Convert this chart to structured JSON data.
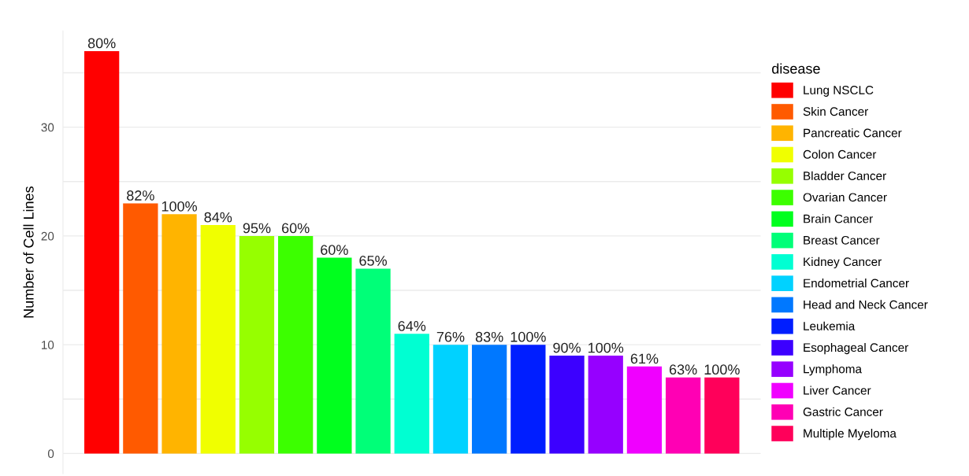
{
  "chart_data": {
    "type": "bar",
    "ylabel": "Number of Cell Lines",
    "legend_title": "disease",
    "categories": [
      null,
      null,
      null,
      null,
      null,
      null,
      null,
      null,
      null,
      null,
      null,
      null,
      null,
      null,
      null,
      null,
      null
    ],
    "series": [
      {
        "name": "Lung NSCLC",
        "color": "#ff0000",
        "values": [
          37,
          null,
          null,
          null,
          null,
          null,
          null,
          null,
          null,
          null,
          null,
          null,
          null,
          null,
          null,
          null,
          null
        ]
      },
      {
        "name": "Skin Cancer",
        "color": "#ff5a00",
        "values": [
          null,
          23,
          null,
          null,
          null,
          null,
          null,
          null,
          null,
          null,
          null,
          null,
          null,
          null,
          null,
          null,
          null
        ]
      },
      {
        "name": "Pancreatic Cancer",
        "color": "#ffb400",
        "values": [
          null,
          null,
          22,
          null,
          null,
          null,
          null,
          null,
          null,
          null,
          null,
          null,
          null,
          null,
          null,
          null,
          null
        ]
      },
      {
        "name": "Colon Cancer",
        "color": "#f0ff00",
        "values": [
          null,
          null,
          null,
          21,
          null,
          null,
          null,
          null,
          null,
          null,
          null,
          null,
          null,
          null,
          null,
          null,
          null
        ]
      },
      {
        "name": "Bladder Cancer",
        "color": "#96ff00",
        "values": [
          null,
          null,
          null,
          null,
          20,
          null,
          null,
          null,
          null,
          null,
          null,
          null,
          null,
          null,
          null,
          null,
          null
        ]
      },
      {
        "name": "Ovarian Cancer",
        "color": "#3cff00",
        "values": [
          null,
          null,
          null,
          null,
          null,
          20,
          null,
          null,
          null,
          null,
          null,
          null,
          null,
          null,
          null,
          null,
          null
        ]
      },
      {
        "name": "Brain Cancer",
        "color": "#00ff1e",
        "values": [
          null,
          null,
          null,
          null,
          null,
          null,
          18,
          null,
          null,
          null,
          null,
          null,
          null,
          null,
          null,
          null,
          null
        ]
      },
      {
        "name": "Breast Cancer",
        "color": "#00ff78",
        "values": [
          null,
          null,
          null,
          null,
          null,
          null,
          null,
          17,
          null,
          null,
          null,
          null,
          null,
          null,
          null,
          null,
          null
        ]
      },
      {
        "name": "Kidney Cancer",
        "color": "#00ffd2",
        "values": [
          null,
          null,
          null,
          null,
          null,
          null,
          null,
          null,
          11,
          null,
          null,
          null,
          null,
          null,
          null,
          null,
          null
        ]
      },
      {
        "name": "Endometrial Cancer",
        "color": "#00d2ff",
        "values": [
          null,
          null,
          null,
          null,
          null,
          null,
          null,
          null,
          null,
          10,
          null,
          null,
          null,
          null,
          null,
          null,
          null
        ]
      },
      {
        "name": "Head and Neck Cancer",
        "color": "#0078ff",
        "values": [
          null,
          null,
          null,
          null,
          null,
          null,
          null,
          null,
          null,
          null,
          10,
          null,
          null,
          null,
          null,
          null,
          null
        ]
      },
      {
        "name": "Leukemia",
        "color": "#001eff",
        "values": [
          null,
          null,
          null,
          null,
          null,
          null,
          null,
          null,
          null,
          null,
          null,
          10,
          null,
          null,
          null,
          null,
          null
        ]
      },
      {
        "name": "Esophageal Cancer",
        "color": "#3c00ff",
        "values": [
          null,
          null,
          null,
          null,
          null,
          null,
          null,
          null,
          null,
          null,
          null,
          null,
          9,
          null,
          null,
          null,
          null
        ]
      },
      {
        "name": "Lymphoma",
        "color": "#9600ff",
        "values": [
          null,
          null,
          null,
          null,
          null,
          null,
          null,
          null,
          null,
          null,
          null,
          null,
          null,
          9,
          null,
          null,
          null
        ]
      },
      {
        "name": "Liver Cancer",
        "color": "#f000ff",
        "values": [
          null,
          null,
          null,
          null,
          null,
          null,
          null,
          null,
          null,
          null,
          null,
          null,
          null,
          null,
          8,
          null,
          null
        ]
      },
      {
        "name": "Gastric Cancer",
        "color": "#ff00b4",
        "values": [
          null,
          null,
          null,
          null,
          null,
          null,
          null,
          null,
          null,
          null,
          null,
          null,
          null,
          null,
          null,
          7,
          null
        ]
      },
      {
        "name": "Multiple Myeloma",
        "color": "#ff005a",
        "values": [
          null,
          null,
          null,
          null,
          null,
          null,
          null,
          null,
          null,
          null,
          null,
          null,
          null,
          null,
          null,
          null,
          7
        ]
      }
    ],
    "annotations": [
      {
        "text": "80%",
        "y": 37
      },
      {
        "text": "82%",
        "y": 23
      },
      {
        "text": "100%",
        "y": 22
      },
      {
        "text": "84%",
        "y": 21
      },
      {
        "text": "95%",
        "y": 20
      },
      {
        "text": "60%",
        "y": 20
      },
      {
        "text": "60%",
        "y": 18
      },
      {
        "text": "65%",
        "y": 17
      },
      {
        "text": "64%",
        "y": 11
      },
      {
        "text": "76%",
        "y": 10
      },
      {
        "text": "83%",
        "y": 10
      },
      {
        "text": "100%",
        "y": 10
      },
      {
        "text": "90%",
        "y": 9
      },
      {
        "text": "100%",
        "y": 9
      },
      {
        "text": "61%",
        "y": 8
      },
      {
        "text": "63%",
        "y": 7
      },
      {
        "text": "100%",
        "y": 7
      }
    ],
    "ylim": [
      -1.85,
      38.85
    ],
    "yticks": [
      0,
      {
        "value": 5,
        "label": null
      },
      10,
      {
        "value": 15,
        "label": null
      },
      20,
      {
        "value": 25,
        "label": null
      },
      30,
      {
        "value": 35,
        "label": null
      }
    ],
    "grid": "y",
    "legend": "right",
    "tick_labels": "y"
  }
}
